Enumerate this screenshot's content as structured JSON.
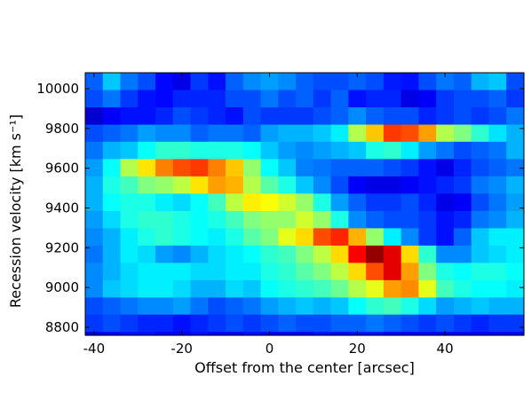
{
  "chart_data": {
    "type": "heatmap",
    "title": "",
    "xlabel": "Offset from the center [arcsec]",
    "ylabel": "Recession velocity [km s⁻¹]",
    "xlim": [
      -42,
      58
    ],
    "ylim": [
      8760,
      10080
    ],
    "x_ticks": [
      -40,
      -20,
      0,
      20,
      40
    ],
    "x_tick_labels": [
      "-40",
      "-20",
      "0",
      "20",
      "40"
    ],
    "y_ticks": [
      8800,
      9000,
      9200,
      9400,
      9600,
      9800,
      10000
    ],
    "y_tick_labels": [
      "8800",
      "9000",
      "9200",
      "9400",
      "9600",
      "9800",
      "10000"
    ],
    "colormap": "jet",
    "value_range": [
      0,
      1
    ],
    "x_bin_edges": [
      -42,
      -38,
      -34,
      -30,
      -26,
      -22,
      -18,
      -14,
      -10,
      -6,
      -2,
      2,
      6,
      10,
      14,
      18,
      22,
      26,
      30,
      34,
      38,
      42,
      46,
      50,
      54,
      58
    ],
    "y_bin_edges": [
      10080,
      9993,
      9906,
      9819,
      9733,
      9646,
      9559,
      9472,
      9385,
      9298,
      9211,
      9124,
      9037,
      8950,
      8864,
      8777,
      8760
    ],
    "values": [
      [
        0.22,
        0.32,
        0.24,
        0.2,
        0.13,
        0.1,
        0.18,
        0.14,
        0.22,
        0.26,
        0.28,
        0.26,
        0.22,
        0.2,
        0.2,
        0.22,
        0.2,
        0.15,
        0.14,
        0.2,
        0.24,
        0.22,
        0.3,
        0.32,
        0.2
      ],
      [
        0.2,
        0.24,
        0.18,
        0.14,
        0.13,
        0.16,
        0.16,
        0.16,
        0.2,
        0.2,
        0.24,
        0.2,
        0.22,
        0.18,
        0.22,
        0.14,
        0.16,
        0.16,
        0.1,
        0.12,
        0.18,
        0.2,
        0.2,
        0.22,
        0.18
      ],
      [
        0.08,
        0.12,
        0.14,
        0.14,
        0.16,
        0.2,
        0.18,
        0.16,
        0.14,
        0.2,
        0.18,
        0.18,
        0.18,
        0.2,
        0.22,
        0.26,
        0.22,
        0.2,
        0.2,
        0.16,
        0.18,
        0.2,
        0.18,
        0.2,
        0.24
      ],
      [
        0.2,
        0.22,
        0.24,
        0.28,
        0.26,
        0.26,
        0.22,
        0.24,
        0.24,
        0.22,
        0.28,
        0.3,
        0.3,
        0.32,
        0.36,
        0.55,
        0.68,
        0.82,
        0.8,
        0.72,
        0.55,
        0.5,
        0.42,
        0.35,
        0.3
      ],
      [
        0.24,
        0.3,
        0.32,
        0.38,
        0.42,
        0.42,
        0.4,
        0.4,
        0.4,
        0.38,
        0.32,
        0.28,
        0.26,
        0.28,
        0.3,
        0.32,
        0.4,
        0.42,
        0.36,
        0.28,
        0.24,
        0.2,
        0.22,
        0.24,
        0.3
      ],
      [
        0.28,
        0.38,
        0.55,
        0.65,
        0.75,
        0.8,
        0.82,
        0.75,
        0.68,
        0.52,
        0.38,
        0.32,
        0.25,
        0.24,
        0.22,
        0.22,
        0.22,
        0.2,
        0.18,
        0.14,
        0.1,
        0.16,
        0.2,
        0.22,
        0.24
      ],
      [
        0.3,
        0.4,
        0.44,
        0.5,
        0.52,
        0.56,
        0.65,
        0.72,
        0.7,
        0.55,
        0.46,
        0.4,
        0.32,
        0.26,
        0.2,
        0.12,
        0.1,
        0.1,
        0.12,
        0.14,
        0.16,
        0.18,
        0.24,
        0.26,
        0.3
      ],
      [
        0.3,
        0.38,
        0.4,
        0.4,
        0.36,
        0.34,
        0.38,
        0.44,
        0.56,
        0.64,
        0.62,
        0.58,
        0.52,
        0.4,
        0.28,
        0.22,
        0.18,
        0.18,
        0.2,
        0.16,
        0.1,
        0.12,
        0.2,
        0.24,
        0.28
      ],
      [
        0.28,
        0.34,
        0.4,
        0.42,
        0.42,
        0.4,
        0.38,
        0.4,
        0.44,
        0.5,
        0.52,
        0.52,
        0.58,
        0.52,
        0.4,
        0.26,
        0.22,
        0.2,
        0.2,
        0.18,
        0.14,
        0.16,
        0.24,
        0.26,
        0.3
      ],
      [
        0.26,
        0.3,
        0.36,
        0.4,
        0.42,
        0.4,
        0.38,
        0.36,
        0.4,
        0.46,
        0.5,
        0.6,
        0.66,
        0.8,
        0.84,
        0.7,
        0.52,
        0.36,
        0.26,
        0.18,
        0.14,
        0.22,
        0.32,
        0.36,
        0.36
      ],
      [
        0.24,
        0.3,
        0.36,
        0.34,
        0.28,
        0.26,
        0.3,
        0.34,
        0.36,
        0.38,
        0.42,
        0.44,
        0.5,
        0.56,
        0.66,
        0.88,
        0.98,
        0.9,
        0.66,
        0.42,
        0.26,
        0.26,
        0.32,
        0.34,
        0.36
      ],
      [
        0.26,
        0.3,
        0.34,
        0.36,
        0.36,
        0.36,
        0.34,
        0.34,
        0.36,
        0.36,
        0.4,
        0.42,
        0.46,
        0.5,
        0.56,
        0.66,
        0.8,
        0.9,
        0.72,
        0.5,
        0.4,
        0.38,
        0.4,
        0.4,
        0.38
      ],
      [
        0.26,
        0.32,
        0.34,
        0.36,
        0.36,
        0.34,
        0.3,
        0.3,
        0.34,
        0.32,
        0.38,
        0.4,
        0.42,
        0.44,
        0.48,
        0.55,
        0.6,
        0.72,
        0.74,
        0.6,
        0.44,
        0.4,
        0.38,
        0.38,
        0.36
      ],
      [
        0.2,
        0.22,
        0.24,
        0.26,
        0.26,
        0.28,
        0.24,
        0.2,
        0.22,
        0.24,
        0.28,
        0.3,
        0.32,
        0.3,
        0.32,
        0.38,
        0.42,
        0.44,
        0.4,
        0.34,
        0.28,
        0.3,
        0.32,
        0.3,
        0.3
      ],
      [
        0.18,
        0.2,
        0.18,
        0.16,
        0.16,
        0.14,
        0.16,
        0.18,
        0.2,
        0.18,
        0.2,
        0.22,
        0.2,
        0.2,
        0.22,
        0.22,
        0.24,
        0.22,
        0.2,
        0.18,
        0.2,
        0.18,
        0.16,
        0.18,
        0.18
      ],
      [
        0.1,
        0.12,
        0.14,
        0.14,
        0.12,
        0.12,
        0.14,
        0.12,
        0.12,
        0.14,
        0.12,
        0.12,
        0.12,
        0.14,
        0.12,
        0.14,
        0.14,
        0.12,
        0.12,
        0.12,
        0.12,
        0.12,
        0.12,
        0.12,
        0.12
      ]
    ]
  }
}
